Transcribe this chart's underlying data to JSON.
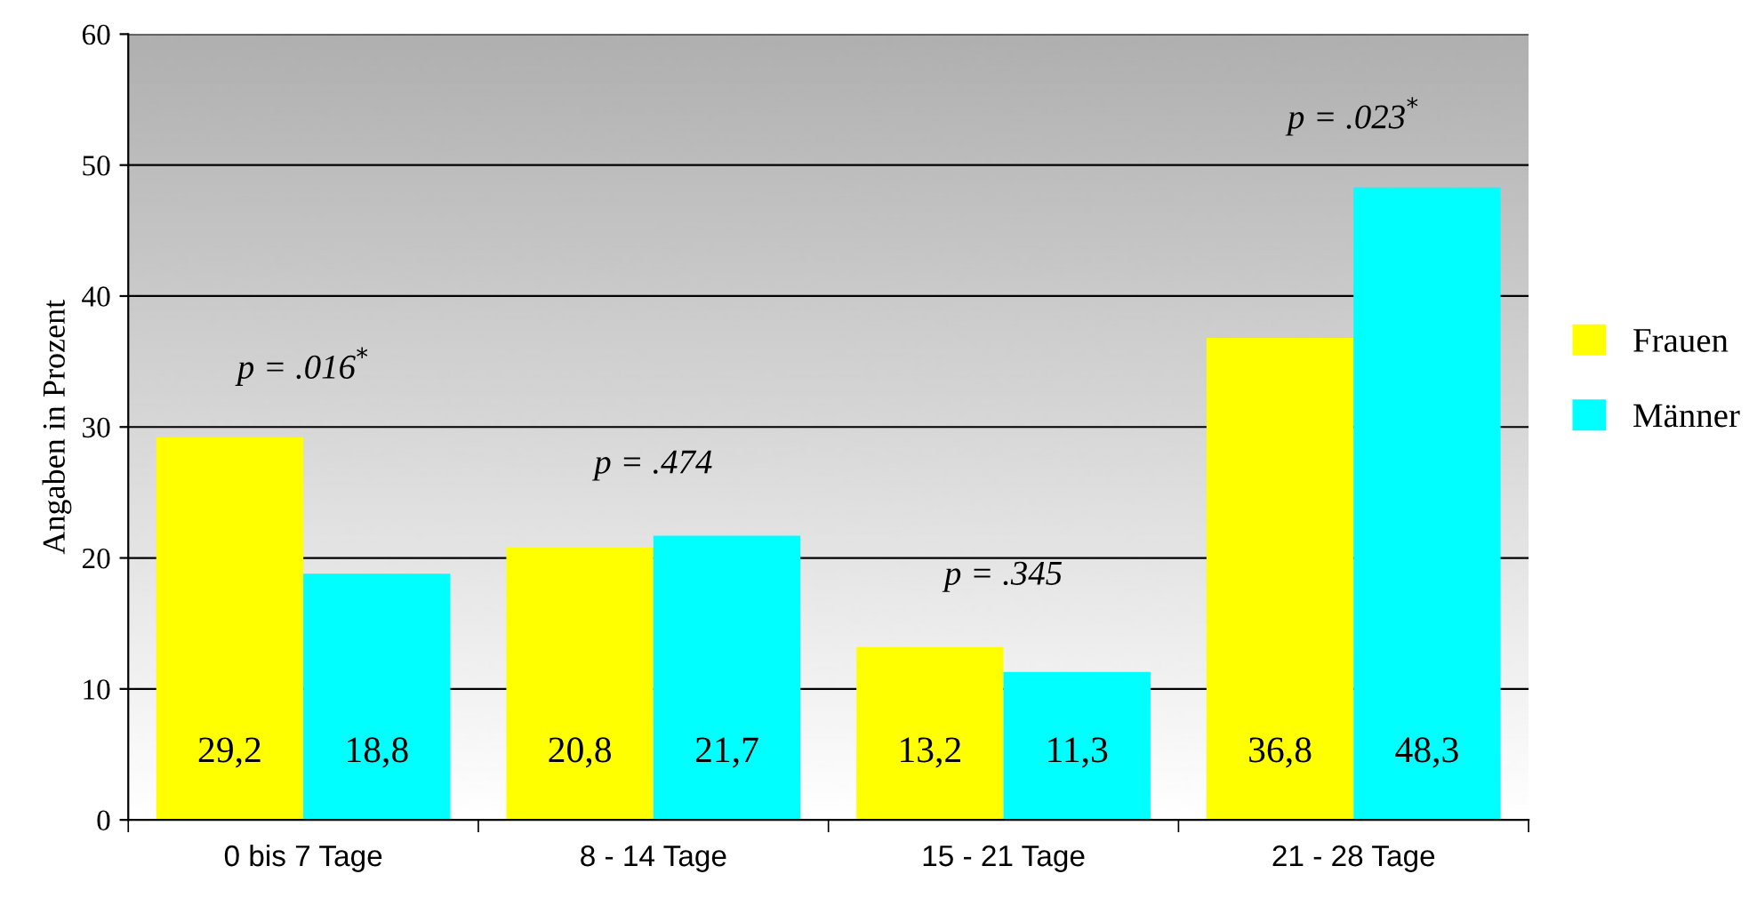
{
  "chart_data": {
    "type": "bar",
    "ylabel": "Angaben in Prozent",
    "categories": [
      "0 bis 7 Tage",
      "8 - 14 Tage",
      "15 - 21 Tage",
      "21 - 28 Tage"
    ],
    "series": [
      {
        "name": "Frauen",
        "color": "#ffff00",
        "values": [
          29.2,
          20.8,
          13.2,
          36.8
        ],
        "value_labels": [
          "29,2",
          "20,8",
          "13,2",
          "36,8"
        ]
      },
      {
        "name": "Männer",
        "color": "#00ffff",
        "values": [
          18.8,
          21.7,
          11.3,
          48.3
        ],
        "value_labels": [
          "18,8",
          "21,7",
          "11,3",
          "48,3"
        ]
      }
    ],
    "ylim": [
      0,
      60
    ],
    "yticks": [
      0,
      10,
      20,
      30,
      40,
      50,
      60
    ],
    "grid": "y",
    "legend": "right",
    "annotations": [
      "p = .016$^{*}$",
      "p = .474",
      "p = .345",
      "p = .023$^{*}$"
    ]
  }
}
